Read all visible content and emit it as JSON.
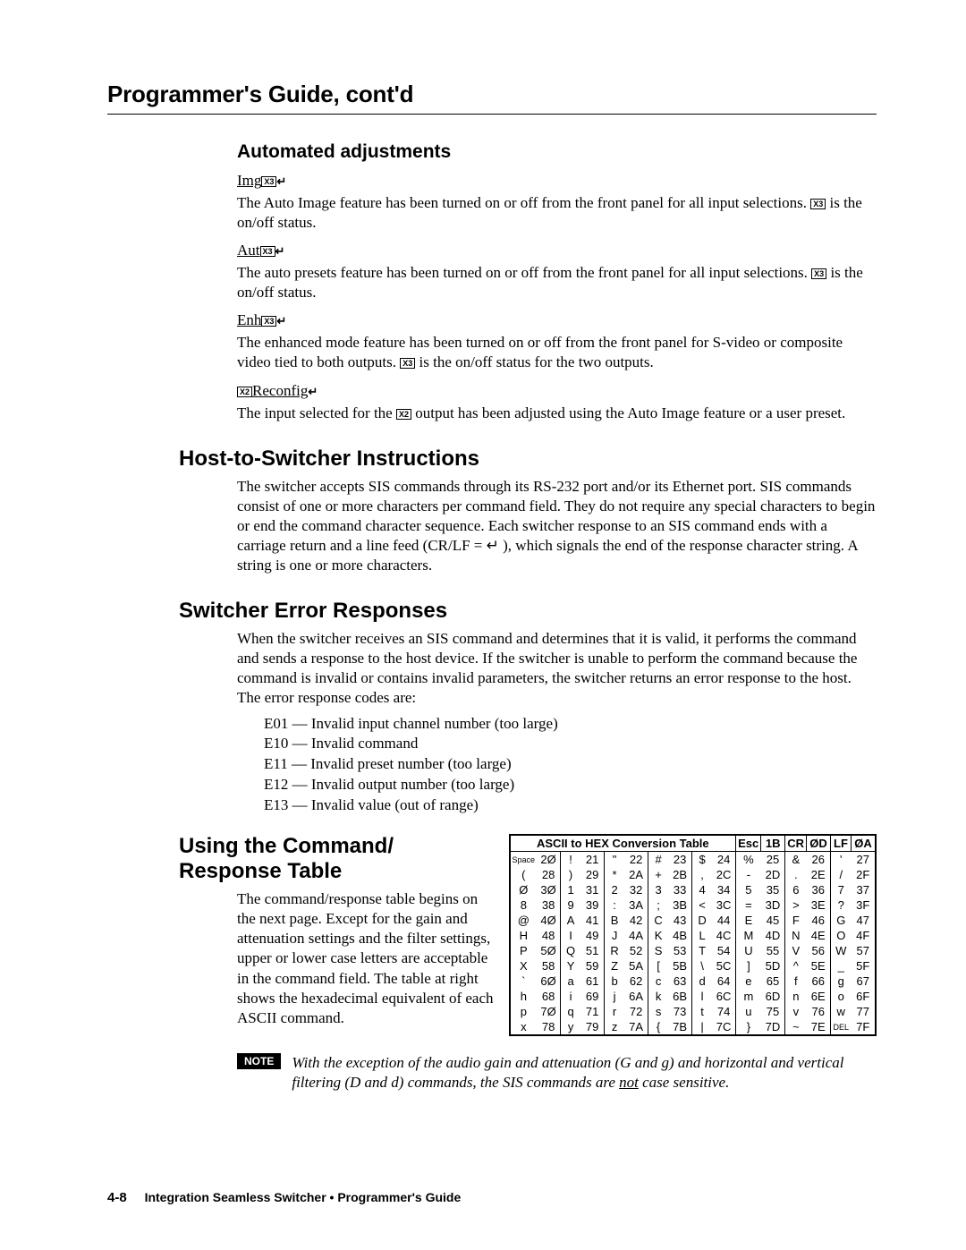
{
  "chapter_title": "Programmer's Guide, cont'd",
  "sec1": {
    "title": "Automated adjustments",
    "items": [
      {
        "label_pre": "Img",
        "var": "X3",
        "text": "The Auto Image feature has been turned on or off from the front panel for all input selections.  X3 is the on/off status."
      },
      {
        "label_pre": "Aut",
        "var": "X3",
        "text": "The auto presets feature has been turned on or off from the front panel for all input selections.  X3 is the on/off status."
      },
      {
        "label_pre": "Enh",
        "var": "X3",
        "text": "The enhanced mode feature has been turned on or off from the front panel for S-video or composite video tied to both outputs.  X3 is the on/off status for the two outputs."
      },
      {
        "label_pre": "",
        "var": "X2",
        "label_post": "Reconfig",
        "text": "The input selected for the X2 output has been adjusted using the Auto Image feature or a user preset."
      }
    ]
  },
  "sec2": {
    "title": "Host-to-Switcher Instructions",
    "text": "The switcher accepts SIS commands through its RS-232 port and/or its Ethernet port.  SIS commands consist of one or more characters per command field.  They do not require any special characters to begin or end the command character sequence.  Each switcher response to an SIS command ends with a carriage return and a line feed (CR/LF = ↵ ), which signals the end of the response character string.  A string is one or more characters."
  },
  "sec3": {
    "title": "Switcher Error Responses",
    "text": "When the switcher receives an SIS command and determines that it is valid, it performs the command and sends a response to the host device.  If the switcher is unable to perform the command because the command is invalid or contains invalid parameters, the switcher returns an error response to the host.  The error response codes are:",
    "errors": [
      "E01 — Invalid input channel number (too large)",
      "E10 — Invalid command",
      "E11 — Invalid preset number (too large)",
      "E12 — Invalid output number (too large)",
      "E13 — Invalid value (out of range)"
    ]
  },
  "sec4": {
    "title": "Using the Command/ Response Table",
    "text": "The command/response table begins on the next page.  Except for the gain and attenuation settings and the filter settings, upper or lower case letters are acceptable in the command field.  The table at right shows the hexadecimal equivalent of each ASCII command."
  },
  "hex_table": {
    "header_main": "ASCII to HEX  Conversion Table",
    "header_extra": [
      [
        "Esc",
        "1B"
      ],
      [
        "CR",
        "ØD"
      ],
      [
        "LF",
        "ØA"
      ]
    ],
    "rows": [
      [
        [
          "Space",
          "2Ø"
        ],
        [
          "!",
          "21"
        ],
        [
          "\"",
          "22"
        ],
        [
          "#",
          "23"
        ],
        [
          "$",
          "24"
        ],
        [
          "%",
          "25"
        ],
        [
          "&",
          "26"
        ],
        [
          "'",
          "27"
        ]
      ],
      [
        [
          "(",
          "28"
        ],
        [
          ")",
          "29"
        ],
        [
          "*",
          "2A"
        ],
        [
          "+",
          "2B"
        ],
        [
          ",",
          "2C"
        ],
        [
          "-",
          "2D"
        ],
        [
          ".",
          "2E"
        ],
        [
          "/",
          "2F"
        ]
      ],
      [
        [
          "Ø",
          "3Ø"
        ],
        [
          "1",
          "31"
        ],
        [
          "2",
          "32"
        ],
        [
          "3",
          "33"
        ],
        [
          "4",
          "34"
        ],
        [
          "5",
          "35"
        ],
        [
          "6",
          "36"
        ],
        [
          "7",
          "37"
        ]
      ],
      [
        [
          "8",
          "38"
        ],
        [
          "9",
          "39"
        ],
        [
          ":",
          "3A"
        ],
        [
          ";",
          "3B"
        ],
        [
          "<",
          "3C"
        ],
        [
          "=",
          "3D"
        ],
        [
          ">",
          "3E"
        ],
        [
          "?",
          "3F"
        ]
      ],
      [
        [
          "@",
          "4Ø"
        ],
        [
          "A",
          "41"
        ],
        [
          "B",
          "42"
        ],
        [
          "C",
          "43"
        ],
        [
          "D",
          "44"
        ],
        [
          "E",
          "45"
        ],
        [
          "F",
          "46"
        ],
        [
          "G",
          "47"
        ]
      ],
      [
        [
          "H",
          "48"
        ],
        [
          "I",
          "49"
        ],
        [
          "J",
          "4A"
        ],
        [
          "K",
          "4B"
        ],
        [
          "L",
          "4C"
        ],
        [
          "M",
          "4D"
        ],
        [
          "N",
          "4E"
        ],
        [
          "O",
          "4F"
        ]
      ],
      [
        [
          "P",
          "5Ø"
        ],
        [
          "Q",
          "51"
        ],
        [
          "R",
          "52"
        ],
        [
          "S",
          "53"
        ],
        [
          "T",
          "54"
        ],
        [
          "U",
          "55"
        ],
        [
          "V",
          "56"
        ],
        [
          "W",
          "57"
        ]
      ],
      [
        [
          "X",
          "58"
        ],
        [
          "Y",
          "59"
        ],
        [
          "Z",
          "5A"
        ],
        [
          "[",
          "5B"
        ],
        [
          "\\",
          "5C"
        ],
        [
          "]",
          "5D"
        ],
        [
          "^",
          "5E"
        ],
        [
          "_",
          "5F"
        ]
      ],
      [
        [
          "`",
          "6Ø"
        ],
        [
          "a",
          "61"
        ],
        [
          "b",
          "62"
        ],
        [
          "c",
          "63"
        ],
        [
          "d",
          "64"
        ],
        [
          "e",
          "65"
        ],
        [
          "f",
          "66"
        ],
        [
          "g",
          "67"
        ]
      ],
      [
        [
          "h",
          "68"
        ],
        [
          "i",
          "69"
        ],
        [
          "j",
          "6A"
        ],
        [
          "k",
          "6B"
        ],
        [
          "l",
          "6C"
        ],
        [
          "m",
          "6D"
        ],
        [
          "n",
          "6E"
        ],
        [
          "o",
          "6F"
        ]
      ],
      [
        [
          "p",
          "7Ø"
        ],
        [
          "q",
          "71"
        ],
        [
          "r",
          "72"
        ],
        [
          "s",
          "73"
        ],
        [
          "t",
          "74"
        ],
        [
          "u",
          "75"
        ],
        [
          "v",
          "76"
        ],
        [
          "w",
          "77"
        ]
      ],
      [
        [
          "x",
          "78"
        ],
        [
          "y",
          "79"
        ],
        [
          "z",
          "7A"
        ],
        [
          "{",
          "7B"
        ],
        [
          "|",
          "7C"
        ],
        [
          "}",
          "7D"
        ],
        [
          "~",
          "7E"
        ],
        [
          "DEL",
          "7F"
        ]
      ]
    ]
  },
  "note": {
    "label": "NOTE",
    "text_pre": "With the exception of the audio gain and attenuation (G and g) and horizontal and vertical filtering (D and d) commands, the SIS commands are ",
    "not": "not",
    "text_post": " case sensitive."
  },
  "footer": {
    "page": "4-8",
    "text": "Integration Seamless Switcher • Programmer's Guide"
  }
}
